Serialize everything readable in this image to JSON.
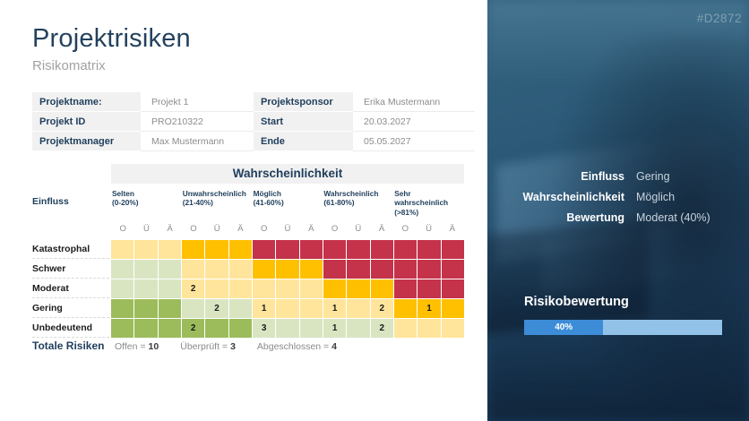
{
  "page": {
    "title": "Projektrisiken",
    "subtitle": "Risikomatrix",
    "ref_code": "#D2872"
  },
  "info": {
    "left": [
      {
        "label": "Projektname:",
        "value": "Projekt 1"
      },
      {
        "label": "Projekt ID",
        "value": "PRO210322"
      },
      {
        "label": "Projektmanager",
        "value": "Max Mustermann"
      }
    ],
    "right": [
      {
        "label": "Projektsponsor",
        "value": "Erika Mustermann"
      },
      {
        "label": "Start",
        "value": "20.03.2027"
      },
      {
        "label": "Ende",
        "value": "05.05.2027"
      }
    ]
  },
  "matrix": {
    "header": "Wahrscheinlichkeit",
    "influence_label": "Einfluss",
    "columns": [
      {
        "name": "Selten",
        "range": "(0-20%)"
      },
      {
        "name": "Unwahrscheinlich",
        "range": "(21-40%)"
      },
      {
        "name": "Möglich",
        "range": "(41-60%)"
      },
      {
        "name": "Wahrscheinlich",
        "range": "(61-80%)"
      },
      {
        "name": "Sehr wahrscheinlich",
        "range": "(>81%)"
      }
    ],
    "status_letters": [
      "O",
      "Ü",
      "Ä"
    ],
    "rows": [
      {
        "label": "Katastrophal",
        "cells": [
          [
            "yellow",
            ""
          ],
          [
            "yellow",
            ""
          ],
          [
            "yellow",
            ""
          ],
          [
            "orange",
            ""
          ],
          [
            "orange",
            ""
          ],
          [
            "orange",
            ""
          ],
          [
            "red",
            ""
          ],
          [
            "red",
            ""
          ],
          [
            "red",
            ""
          ],
          [
            "red",
            ""
          ],
          [
            "red",
            ""
          ],
          [
            "red",
            ""
          ],
          [
            "red",
            ""
          ],
          [
            "red",
            ""
          ],
          [
            "red",
            ""
          ]
        ]
      },
      {
        "label": "Schwer",
        "cells": [
          [
            "light_green",
            ""
          ],
          [
            "light_green",
            ""
          ],
          [
            "light_green",
            ""
          ],
          [
            "yellow",
            ""
          ],
          [
            "yellow",
            ""
          ],
          [
            "yellow",
            ""
          ],
          [
            "orange",
            ""
          ],
          [
            "orange",
            ""
          ],
          [
            "orange",
            ""
          ],
          [
            "red",
            ""
          ],
          [
            "red",
            ""
          ],
          [
            "red",
            ""
          ],
          [
            "red",
            ""
          ],
          [
            "red",
            ""
          ],
          [
            "red",
            ""
          ]
        ]
      },
      {
        "label": "Moderat",
        "cells": [
          [
            "light_green",
            ""
          ],
          [
            "light_green",
            ""
          ],
          [
            "light_green",
            ""
          ],
          [
            "yellow",
            "2"
          ],
          [
            "yellow",
            ""
          ],
          [
            "yellow",
            ""
          ],
          [
            "yellow",
            ""
          ],
          [
            "yellow",
            ""
          ],
          [
            "yellow",
            ""
          ],
          [
            "orange",
            ""
          ],
          [
            "orange",
            ""
          ],
          [
            "orange",
            ""
          ],
          [
            "red",
            ""
          ],
          [
            "red",
            ""
          ],
          [
            "red",
            ""
          ]
        ]
      },
      {
        "label": "Gering",
        "cells": [
          [
            "green",
            ""
          ],
          [
            "green",
            ""
          ],
          [
            "green",
            ""
          ],
          [
            "light_green",
            ""
          ],
          [
            "light_green",
            "2"
          ],
          [
            "light_green",
            ""
          ],
          [
            "yellow",
            "1"
          ],
          [
            "yellow",
            ""
          ],
          [
            "yellow",
            ""
          ],
          [
            "yellow",
            "1"
          ],
          [
            "yellow",
            ""
          ],
          [
            "yellow",
            "2"
          ],
          [
            "orange",
            ""
          ],
          [
            "orange",
            "1"
          ],
          [
            "orange",
            ""
          ]
        ]
      },
      {
        "label": "Unbedeutend",
        "cells": [
          [
            "green",
            ""
          ],
          [
            "green",
            ""
          ],
          [
            "green",
            ""
          ],
          [
            "green",
            "2"
          ],
          [
            "green",
            ""
          ],
          [
            "green",
            ""
          ],
          [
            "light_green",
            "3"
          ],
          [
            "light_green",
            ""
          ],
          [
            "light_green",
            ""
          ],
          [
            "light_green",
            "1"
          ],
          [
            "light_green",
            ""
          ],
          [
            "light_green",
            "2"
          ],
          [
            "yellow",
            ""
          ],
          [
            "yellow",
            ""
          ],
          [
            "yellow",
            ""
          ]
        ]
      }
    ]
  },
  "totals": {
    "label": "Totale Risiken",
    "items": [
      {
        "label": "Offen =",
        "value": "10"
      },
      {
        "label": "Überprüft =",
        "value": "3"
      },
      {
        "label": "Abgeschlossen =",
        "value": "4"
      }
    ]
  },
  "panel": {
    "kv": [
      {
        "label": "Einfluss",
        "value": "Gering"
      },
      {
        "label": "Wahrscheinlichkeit",
        "value": "Möglich"
      },
      {
        "label": "Bewertung",
        "value": "Moderat (40%)"
      }
    ],
    "rating": {
      "title": "Risikobewertung",
      "percent_label": "40%",
      "fill_percent": 40
    }
  },
  "colors": {
    "red": "#C4334A",
    "orange": "#FFC000",
    "yellow": "#FFE59B",
    "light_green": "#D9E5C1",
    "green": "#9CBC5C",
    "navy": "#1F3E5C",
    "bar_fill": "#3C8CD8",
    "bar_rest": "#92C2E8"
  }
}
